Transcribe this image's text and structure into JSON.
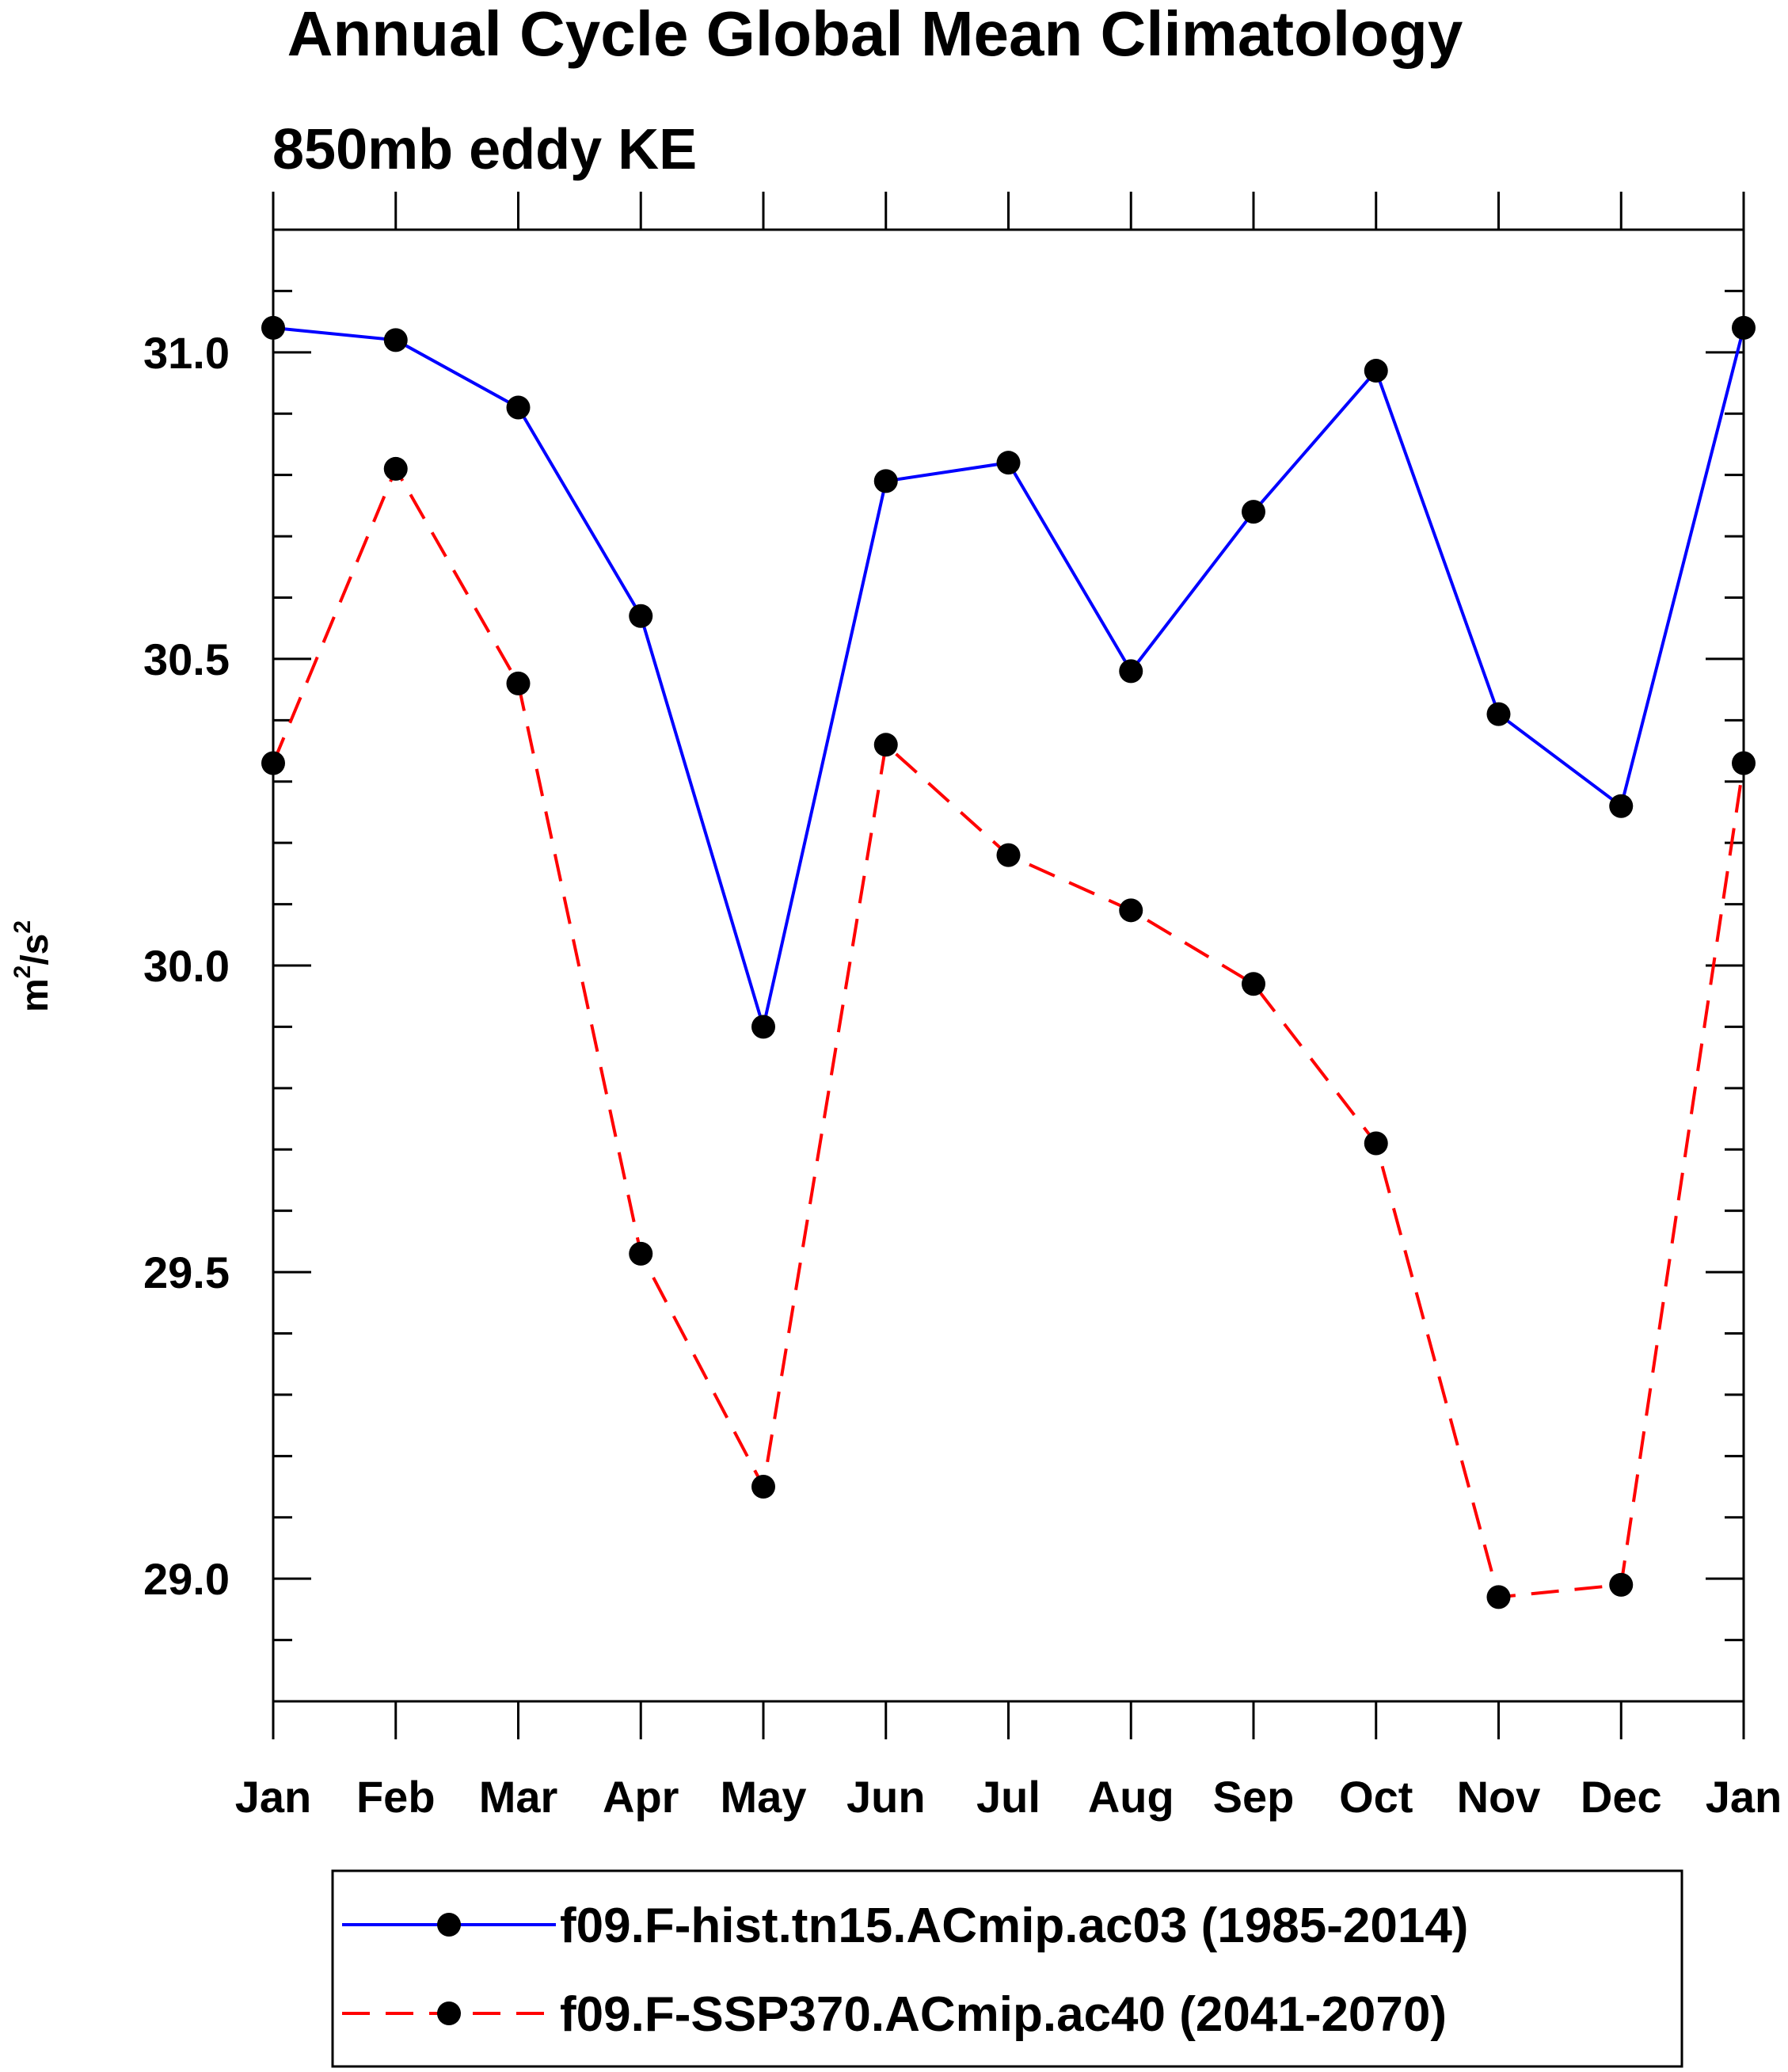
{
  "chart_data": {
    "type": "line",
    "title": "Annual Cycle Global Mean Climatology",
    "subtitle": "850mb eddy KE",
    "xlabel": "",
    "ylabel_base": "m",
    "ylabel_sup1": "2",
    "ylabel_mid": "/s",
    "ylabel_sup2": "2",
    "categories": [
      "Jan",
      "Feb",
      "Mar",
      "Apr",
      "May",
      "Jun",
      "Jul",
      "Aug",
      "Sep",
      "Oct",
      "Nov",
      "Dec",
      "Jan"
    ],
    "ylim": [
      28.8,
      31.2
    ],
    "y_major_ticks": [
      29.0,
      29.5,
      30.0,
      30.5,
      31.0
    ],
    "y_tick_labels": [
      "29.0",
      "29.5",
      "30.0",
      "30.5",
      "31.0"
    ],
    "y_minor_step": 0.1,
    "grid": false,
    "legend_position": "bottom",
    "series": [
      {
        "name": "f09.F-hist.tn15.ACmip.ac03 (1985-2014)",
        "color": "#0000ff",
        "line_style": "solid",
        "marker": "filled-circle",
        "marker_color": "#000000",
        "values": [
          31.04,
          31.02,
          30.91,
          30.57,
          29.9,
          30.79,
          30.82,
          30.48,
          30.74,
          30.97,
          30.41,
          30.26,
          31.04
        ]
      },
      {
        "name": "f09.F-SSP370.ACmip.ac40 (2041-2070)",
        "color": "#ff0000",
        "line_style": "dashed",
        "marker": "filled-circle",
        "marker_color": "#000000",
        "values": [
          30.33,
          30.81,
          30.46,
          29.53,
          29.15,
          30.36,
          30.18,
          30.09,
          29.97,
          29.71,
          28.97,
          28.99,
          30.33
        ]
      }
    ]
  }
}
